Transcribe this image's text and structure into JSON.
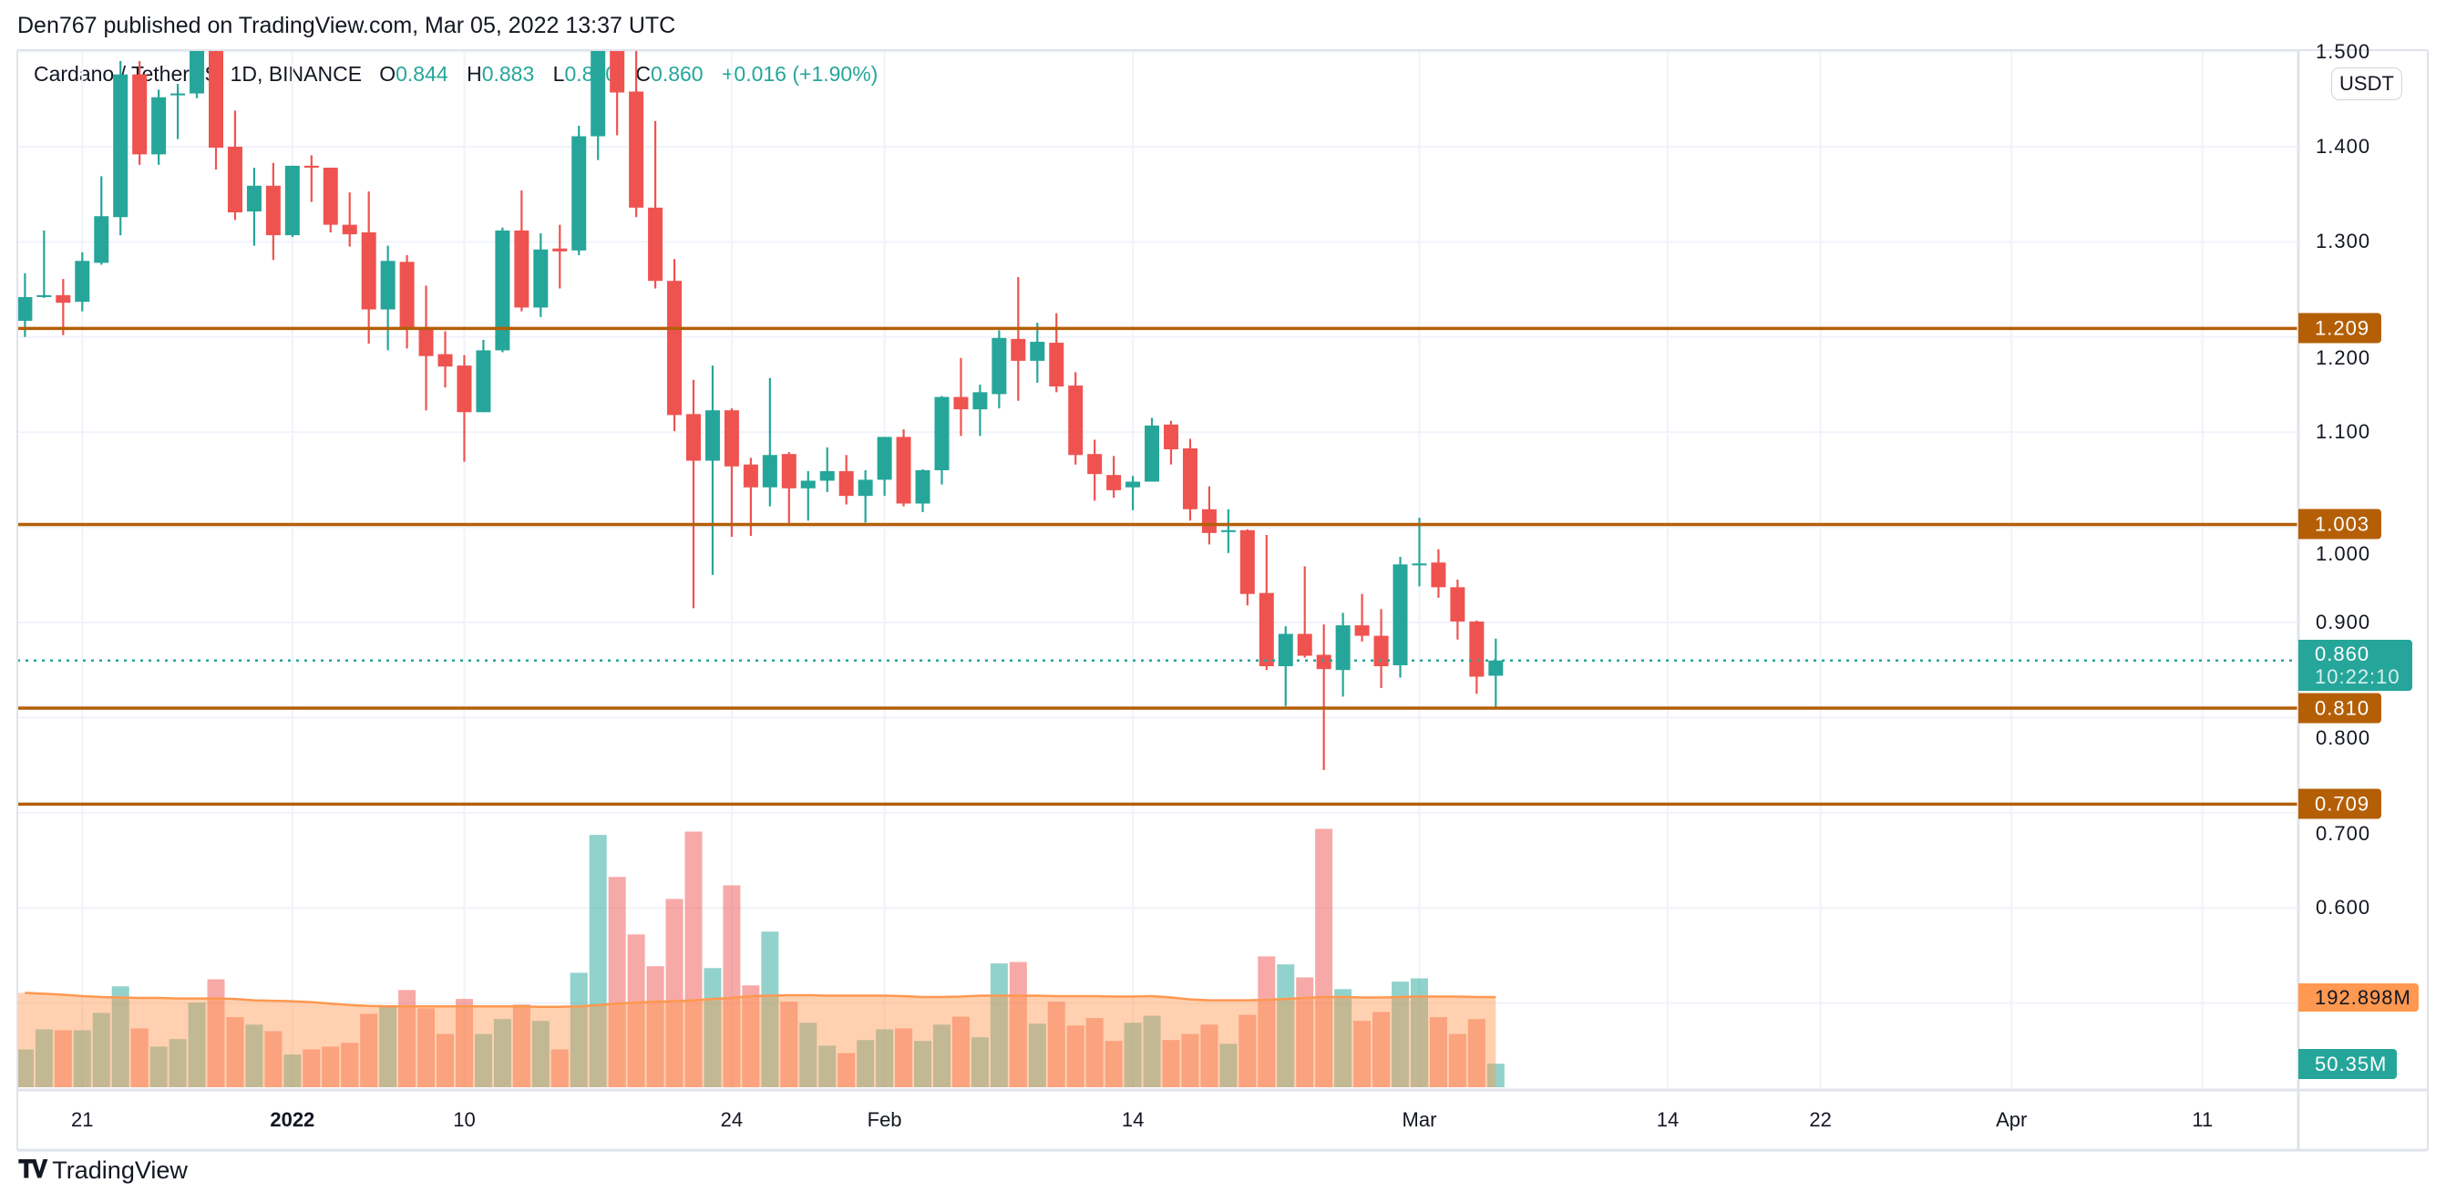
{
  "header": {
    "published": "Den767 published on TradingView.com, Mar 05, 2022 13:37 UTC"
  },
  "legend": {
    "symbol": "Cardano / TetherUS, 1D, BINANCE",
    "o_key": "O",
    "o_val": "0.844",
    "h_key": "H",
    "h_val": "0.883",
    "l_key": "L",
    "l_val": "0.810",
    "c_key": "C",
    "c_val": "0.860",
    "change": "+0.016 (+1.90%)"
  },
  "price_axis": {
    "currency": "USDT"
  },
  "current_price": {
    "value": "0.860",
    "countdown": "10:22:10"
  },
  "volume_labels": {
    "ma": "192.898M",
    "current": "50.35M"
  },
  "logo": {
    "text": "TradingView",
    "mark": "17"
  },
  "colors": {
    "up": "#26a69a",
    "down": "#ef5350",
    "level": "#b45f06",
    "volume_ma": "#ff9850",
    "grid": "#f0f3fa"
  },
  "chart_data": {
    "type": "candlestick",
    "grid": true,
    "y_ticks": [
      "1.500",
      "1.400",
      "1.300",
      "1.200",
      "1.100",
      "1.000",
      "0.900",
      "0.800",
      "0.700",
      "0.600"
    ],
    "x_ticks": [
      {
        "label": "21",
        "date": "2021-12-21"
      },
      {
        "label": "2022",
        "date": "2022-01-01",
        "bold": true
      },
      {
        "label": "10",
        "date": "2022-01-10"
      },
      {
        "label": "24",
        "date": "2022-01-24"
      },
      {
        "label": "Feb",
        "date": "2022-02-01"
      },
      {
        "label": "14",
        "date": "2022-02-14"
      },
      {
        "label": "Mar",
        "date": "2022-03-01"
      },
      {
        "label": "14",
        "date": "2022-03-14"
      },
      {
        "label": "22",
        "date": "2022-03-22"
      },
      {
        "label": "Apr",
        "date": "2022-04-01"
      },
      {
        "label": "11",
        "date": "2022-04-11"
      }
    ],
    "levels": [
      "1.209",
      "1.003",
      "0.810",
      "0.709"
    ],
    "columns": [
      "date",
      "open",
      "high",
      "low",
      "close",
      "volume_M",
      "volume_ma_M"
    ],
    "candles": [
      [
        "2021-12-18",
        1.217,
        1.267,
        1.2,
        1.242,
        81,
        202
      ],
      [
        "2021-12-19",
        1.242,
        1.312,
        1.241,
        1.244,
        124,
        200
      ],
      [
        "2021-12-20",
        1.244,
        1.261,
        1.202,
        1.236,
        122,
        198
      ],
      [
        "2021-12-21",
        1.237,
        1.289,
        1.227,
        1.28,
        122,
        195
      ],
      [
        "2021-12-22",
        1.278,
        1.369,
        1.276,
        1.327,
        159,
        193
      ],
      [
        "2021-12-23",
        1.326,
        1.49,
        1.307,
        1.476,
        216,
        192
      ],
      [
        "2021-12-24",
        1.476,
        1.49,
        1.381,
        1.392,
        126,
        191
      ],
      [
        "2021-12-25",
        1.392,
        1.46,
        1.381,
        1.452,
        87,
        191
      ],
      [
        "2021-12-26",
        1.454,
        1.466,
        1.408,
        1.456,
        103,
        190
      ],
      [
        "2021-12-27",
        1.456,
        1.55,
        1.451,
        1.52,
        181,
        190
      ],
      [
        "2021-12-28",
        1.52,
        1.54,
        1.376,
        1.399,
        231,
        190
      ],
      [
        "2021-12-29",
        1.4,
        1.438,
        1.323,
        1.331,
        150,
        189
      ],
      [
        "2021-12-30",
        1.332,
        1.378,
        1.296,
        1.359,
        134,
        186
      ],
      [
        "2021-12-31",
        1.359,
        1.383,
        1.281,
        1.307,
        120,
        185
      ],
      [
        "2022-01-01",
        1.307,
        1.38,
        1.305,
        1.38,
        70,
        184
      ],
      [
        "2022-01-02",
        1.38,
        1.391,
        1.342,
        1.378,
        81,
        182
      ],
      [
        "2022-01-03",
        1.378,
        1.378,
        1.31,
        1.318,
        87,
        179
      ],
      [
        "2022-01-04",
        1.318,
        1.352,
        1.295,
        1.308,
        95,
        176
      ],
      [
        "2022-01-05",
        1.31,
        1.353,
        1.193,
        1.229,
        157,
        174
      ],
      [
        "2022-01-06",
        1.229,
        1.296,
        1.186,
        1.28,
        175,
        173
      ],
      [
        "2022-01-07",
        1.279,
        1.286,
        1.188,
        1.21,
        208,
        173
      ],
      [
        "2022-01-08",
        1.209,
        1.254,
        1.123,
        1.18,
        169,
        173
      ],
      [
        "2022-01-09",
        1.182,
        1.206,
        1.147,
        1.169,
        114,
        173
      ],
      [
        "2022-01-10",
        1.17,
        1.181,
        1.069,
        1.121,
        189,
        173
      ],
      [
        "2022-01-11",
        1.121,
        1.197,
        1.121,
        1.186,
        114,
        173
      ],
      [
        "2022-01-12",
        1.186,
        1.315,
        1.184,
        1.312,
        146,
        173
      ],
      [
        "2022-01-13",
        1.312,
        1.354,
        1.227,
        1.231,
        177,
        173
      ],
      [
        "2022-01-14",
        1.231,
        1.309,
        1.221,
        1.292,
        142,
        172
      ],
      [
        "2022-01-15",
        1.293,
        1.318,
        1.251,
        1.29,
        81,
        172
      ],
      [
        "2022-01-16",
        1.291,
        1.422,
        1.286,
        1.411,
        245,
        173
      ],
      [
        "2022-01-17",
        1.411,
        1.56,
        1.386,
        1.53,
        540,
        176
      ],
      [
        "2022-01-18",
        1.53,
        1.56,
        1.412,
        1.457,
        450,
        179
      ],
      [
        "2022-01-19",
        1.458,
        1.56,
        1.326,
        1.336,
        327,
        181
      ],
      [
        "2022-01-20",
        1.336,
        1.427,
        1.251,
        1.259,
        259,
        183
      ],
      [
        "2022-01-21",
        1.259,
        1.282,
        1.101,
        1.118,
        403,
        184
      ],
      [
        "2022-01-22",
        1.119,
        1.155,
        0.915,
        1.07,
        547,
        186
      ],
      [
        "2022-01-23",
        1.07,
        1.17,
        0.95,
        1.123,
        255,
        189
      ],
      [
        "2022-01-24",
        1.123,
        1.125,
        0.99,
        1.064,
        432,
        191
      ],
      [
        "2022-01-25",
        1.066,
        1.073,
        0.991,
        1.042,
        218,
        195
      ],
      [
        "2022-01-26",
        1.042,
        1.157,
        1.022,
        1.076,
        333,
        196
      ],
      [
        "2022-01-27",
        1.077,
        1.079,
        1.003,
        1.041,
        183,
        197
      ],
      [
        "2022-01-28",
        1.041,
        1.059,
        1.007,
        1.049,
        138,
        197
      ],
      [
        "2022-01-29",
        1.049,
        1.084,
        1.037,
        1.059,
        89,
        196
      ],
      [
        "2022-01-30",
        1.059,
        1.076,
        1.024,
        1.033,
        73,
        196
      ],
      [
        "2022-01-31",
        1.033,
        1.06,
        1.005,
        1.05,
        101,
        196
      ],
      [
        "2022-02-01",
        1.05,
        1.095,
        1.033,
        1.095,
        124,
        196
      ],
      [
        "2022-02-02",
        1.095,
        1.103,
        1.022,
        1.025,
        126,
        195
      ],
      [
        "2022-02-03",
        1.025,
        1.061,
        1.016,
        1.06,
        99,
        193
      ],
      [
        "2022-02-04",
        1.06,
        1.138,
        1.045,
        1.137,
        134,
        193
      ],
      [
        "2022-02-05",
        1.137,
        1.178,
        1.096,
        1.124,
        151,
        194
      ],
      [
        "2022-02-06",
        1.124,
        1.15,
        1.096,
        1.142,
        107,
        196
      ],
      [
        "2022-02-07",
        1.14,
        1.207,
        1.125,
        1.199,
        265,
        196
      ],
      [
        "2022-02-08",
        1.198,
        1.263,
        1.133,
        1.175,
        268,
        196
      ],
      [
        "2022-02-09",
        1.175,
        1.215,
        1.152,
        1.195,
        136,
        196
      ],
      [
        "2022-02-10",
        1.194,
        1.225,
        1.142,
        1.148,
        183,
        195
      ],
      [
        "2022-02-11",
        1.149,
        1.163,
        1.066,
        1.076,
        132,
        195
      ],
      [
        "2022-02-12",
        1.077,
        1.092,
        1.028,
        1.056,
        148,
        195
      ],
      [
        "2022-02-13",
        1.055,
        1.075,
        1.031,
        1.039,
        99,
        194
      ],
      [
        "2022-02-14",
        1.042,
        1.054,
        1.018,
        1.048,
        138,
        194
      ],
      [
        "2022-02-15",
        1.048,
        1.115,
        1.048,
        1.107,
        153,
        195
      ],
      [
        "2022-02-16",
        1.108,
        1.112,
        1.066,
        1.082,
        101,
        192
      ],
      [
        "2022-02-17",
        1.083,
        1.093,
        1.007,
        1.019,
        114,
        188
      ],
      [
        "2022-02-18",
        1.019,
        1.043,
        0.982,
        0.994,
        134,
        186
      ],
      [
        "2022-02-19",
        0.995,
        1.019,
        0.973,
        0.997,
        93,
        186
      ],
      [
        "2022-02-20",
        0.997,
        0.998,
        0.918,
        0.93,
        155,
        186
      ],
      [
        "2022-02-21",
        0.931,
        0.992,
        0.85,
        0.854,
        280,
        187
      ],
      [
        "2022-02-22",
        0.854,
        0.896,
        0.812,
        0.888,
        263,
        189
      ],
      [
        "2022-02-23",
        0.888,
        0.959,
        0.863,
        0.865,
        235,
        191
      ],
      [
        "2022-02-24",
        0.866,
        0.898,
        0.745,
        0.851,
        553,
        193
      ],
      [
        "2022-02-25",
        0.85,
        0.91,
        0.822,
        0.897,
        210,
        193
      ],
      [
        "2022-02-26",
        0.897,
        0.93,
        0.88,
        0.886,
        142,
        192
      ],
      [
        "2022-02-27",
        0.886,
        0.914,
        0.831,
        0.854,
        161,
        192
      ],
      [
        "2022-02-28",
        0.855,
        0.969,
        0.842,
        0.961,
        226,
        193
      ],
      [
        "2022-03-01",
        0.96,
        1.01,
        0.938,
        0.962,
        233,
        194
      ],
      [
        "2022-03-02",
        0.963,
        0.977,
        0.926,
        0.937,
        150,
        194
      ],
      [
        "2022-03-03",
        0.937,
        0.945,
        0.882,
        0.901,
        114,
        194
      ],
      [
        "2022-03-04",
        0.901,
        0.902,
        0.825,
        0.843,
        146,
        193
      ],
      [
        "2022-03-05",
        0.844,
        0.883,
        0.81,
        0.86,
        50.35,
        192.898
      ]
    ]
  }
}
